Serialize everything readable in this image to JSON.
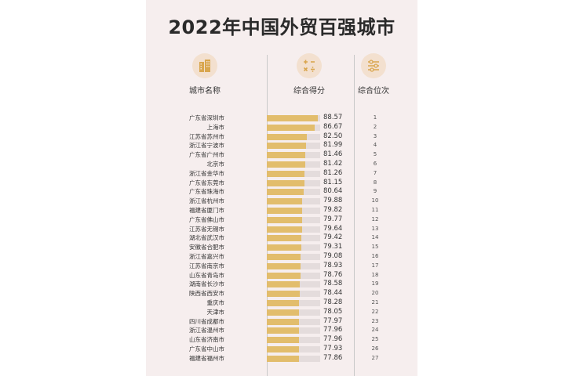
{
  "title": "2022年中国外贸百强城市",
  "headers": {
    "city": "城市名称",
    "score": "综合得分",
    "rank": "综合位次"
  },
  "icons": {
    "city": "building-icon",
    "score": "calculator-icon",
    "rank": "sliders-icon"
  },
  "colors": {
    "background": "#f6eeee",
    "bar": "#e2bd6c",
    "bar_track": "#e4dcdc",
    "icon_bg": "#f3e0cf",
    "icon_fg": "#d9a64e"
  },
  "chart_data": {
    "type": "bar",
    "orientation": "horizontal",
    "title": "2022年中国外贸百强城市",
    "categories": [
      "广东省深圳市",
      "上海市",
      "江苏省苏州市",
      "浙江省宁波市",
      "广东省广州市",
      "北京市",
      "浙江省金华市",
      "广东省东莞市",
      "广东省珠海市",
      "浙江省杭州市",
      "福建省厦门市",
      "广东省佛山市",
      "江苏省无锡市",
      "湖北省武汉市",
      "安徽省合肥市",
      "浙江省嘉兴市",
      "江苏省南京市",
      "山东省青岛市",
      "湖南省长沙市",
      "陕西省西安市",
      "重庆市",
      "天津市",
      "四川省成都市",
      "浙江省温州市",
      "山东省济南市",
      "广东省中山市",
      "福建省福州市"
    ],
    "values": [
      88.57,
      86.67,
      82.5,
      81.99,
      81.46,
      81.42,
      81.26,
      81.15,
      80.64,
      79.88,
      79.82,
      79.77,
      79.64,
      79.42,
      79.31,
      79.08,
      78.93,
      78.76,
      78.58,
      78.44,
      78.28,
      78.05,
      77.97,
      77.96,
      77.96,
      77.93,
      77.86
    ],
    "value_labels": [
      "88.57",
      "86.67",
      "82.50",
      "81.99",
      "81.46",
      "81.42",
      "81.26",
      "81.15",
      "80.64",
      "79.88",
      "79.82",
      "79.77",
      "79.64",
      "79.42",
      "79.31",
      "79.08",
      "78.93",
      "78.76",
      "78.58",
      "78.44",
      "78.28",
      "78.05",
      "77.97",
      "77.96",
      "77.96",
      "77.93",
      "77.86"
    ],
    "ranks": [
      1,
      2,
      3,
      4,
      5,
      6,
      7,
      8,
      9,
      10,
      11,
      12,
      13,
      14,
      15,
      16,
      17,
      18,
      19,
      20,
      21,
      22,
      23,
      24,
      25,
      26,
      27
    ],
    "xlim": [
      0,
      100
    ],
    "grid": false,
    "legend": "none"
  }
}
